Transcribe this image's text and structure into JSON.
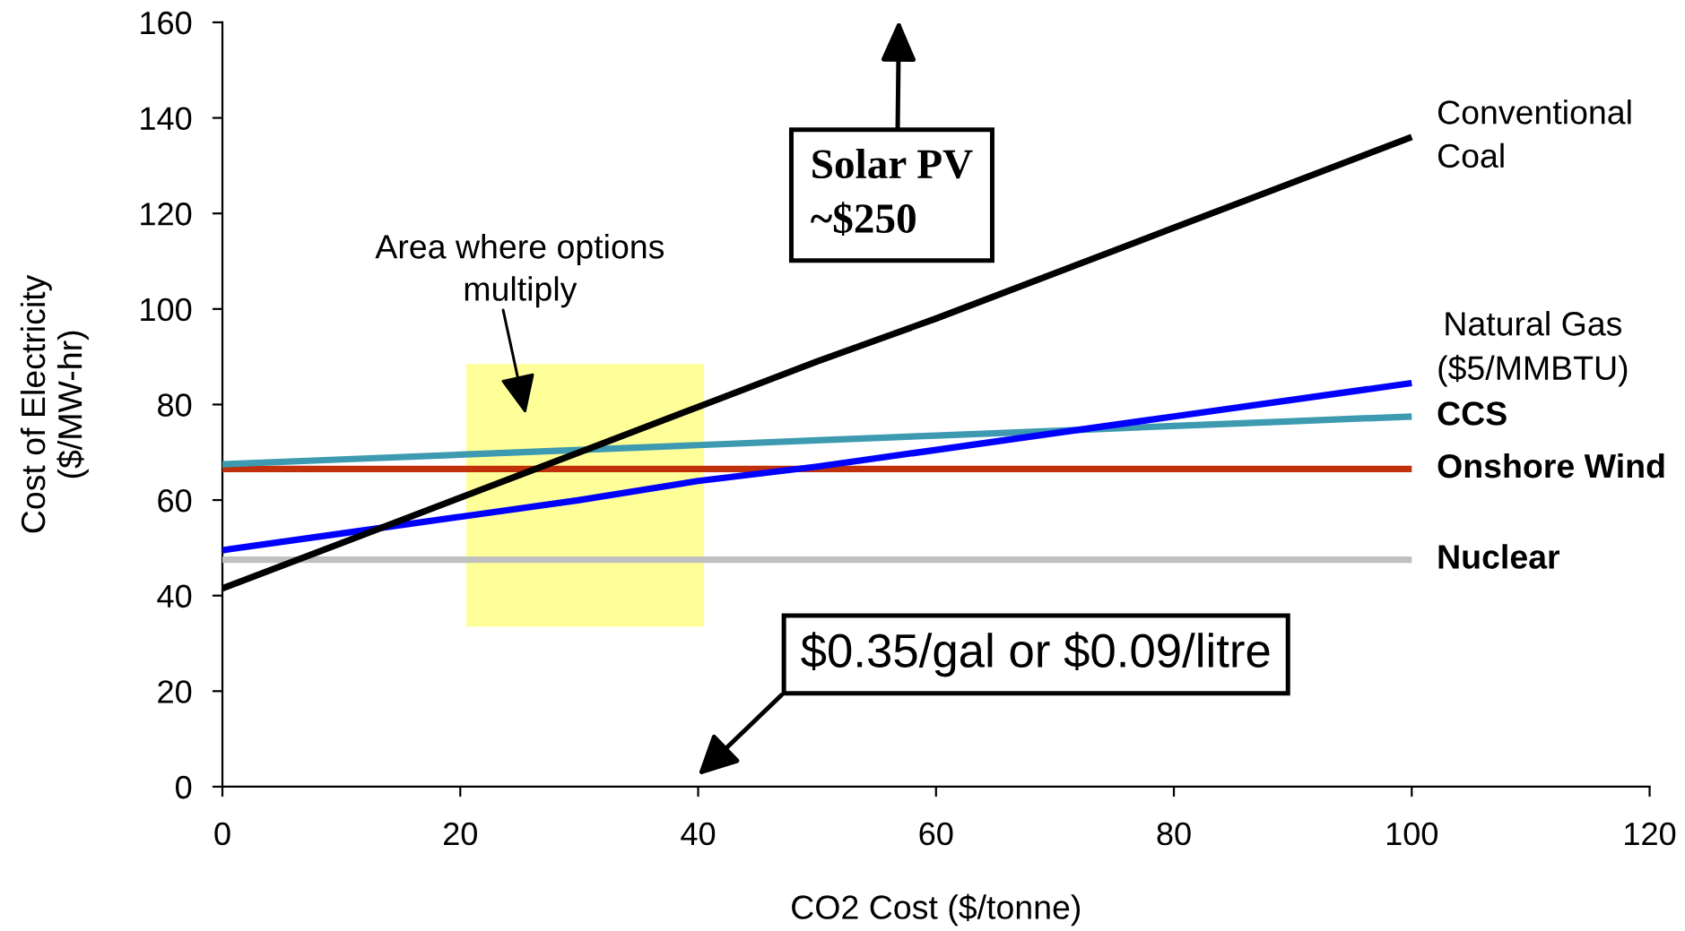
{
  "chart_data": {
    "type": "line",
    "xlabel": "CO2 Cost ($/tonne)",
    "ylabel": "Cost of Electricity\n($/MW-hr)",
    "x": [
      0,
      10,
      20,
      30,
      40,
      50,
      60,
      70,
      80,
      90,
      100
    ],
    "series": [
      {
        "name": "Conventional\nCoal",
        "color": "#000000",
        "values": [
          41.5,
          51,
          60.5,
          70,
          79.5,
          89,
          98,
          107.5,
          117,
          126.5,
          136
        ]
      },
      {
        "name": "Natural Gas\n($5/MMBTU)",
        "color": "#0000ff",
        "values": [
          49.5,
          53,
          56.5,
          60,
          64,
          67,
          70.5,
          74,
          77.5,
          81,
          84.5
        ]
      },
      {
        "name": "CCS",
        "color": "#3d9ab0",
        "values": [
          67.5,
          68.5,
          69.5,
          70.5,
          71.5,
          72.5,
          73.5,
          74.5,
          75.5,
          76.5,
          77.5
        ]
      },
      {
        "name": "Onshore Wind",
        "color": "#c0300b",
        "values": [
          66.5,
          66.5,
          66.5,
          66.5,
          66.5,
          66.5,
          66.5,
          66.5,
          66.5,
          66.5,
          66.5
        ]
      },
      {
        "name": "Nuclear",
        "color": "#c0c0c0",
        "values": [
          47.5,
          47.5,
          47.5,
          47.5,
          47.5,
          47.5,
          47.5,
          47.5,
          47.5,
          47.5,
          47.5
        ]
      },
      {
        "type": "bar",
        "color": "#ffff99",
        "x": [
          30.5
        ],
        "base": [
          33.5
        ],
        "values": [
          55
        ]
      }
    ],
    "annotations": [
      "Area where options\nmultiply",
      "Solar PV\n~$250",
      "$0.35/gal or $0.09/litre"
    ],
    "xlim": [
      0,
      120
    ],
    "ylim": [
      0,
      160
    ],
    "xticks": [
      0,
      20,
      40,
      60,
      80,
      100,
      120
    ],
    "yticks": [
      0,
      20,
      40,
      60,
      80,
      100,
      120,
      140,
      160
    ],
    "line_style": "solid"
  }
}
